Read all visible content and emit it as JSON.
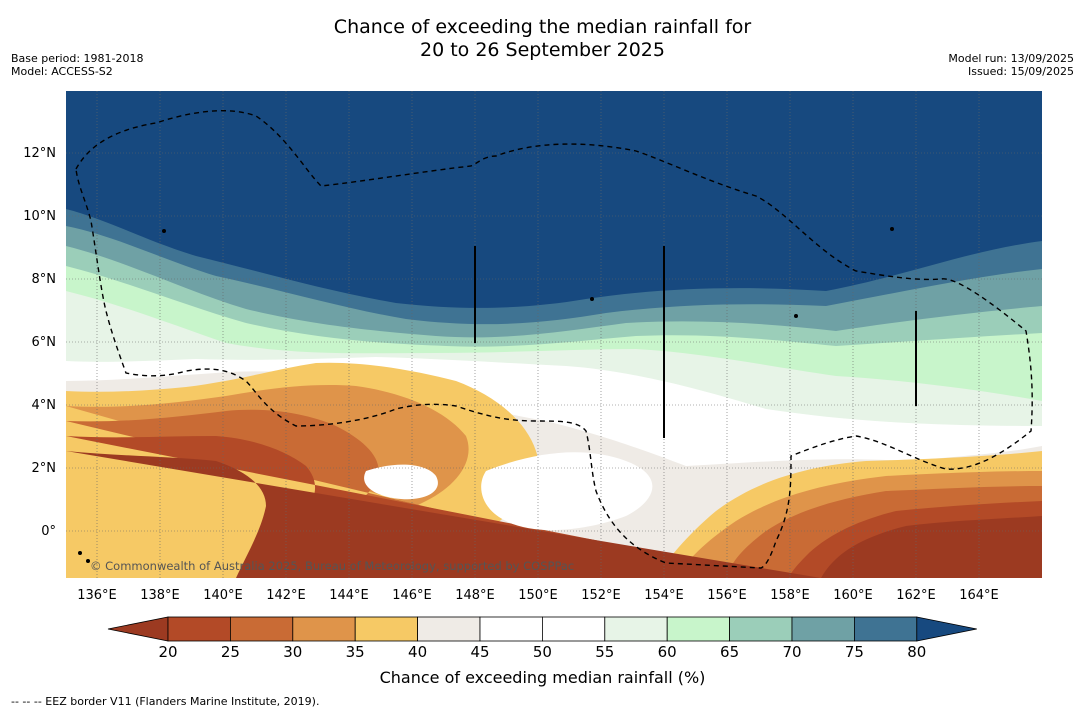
{
  "header": {
    "title_line1": "Chance of exceeding the median rainfall for",
    "title_line2": "20 to 26 September 2025",
    "base_period": "Base period: 1981-2018",
    "model": "Model: ACCESS-S2",
    "model_run": "Model run: 13/09/2025",
    "issued": "Issued: 15/09/2025"
  },
  "map": {
    "copyright": "© Commonwealth of Australia 2025, Bureau of Meteorology, supported by COSPPac",
    "lat_labels": [
      "12°N",
      "10°N",
      "8°N",
      "6°N",
      "4°N",
      "2°N",
      "0°"
    ],
    "lon_labels": [
      "136°E",
      "138°E",
      "140°E",
      "142°E",
      "144°E",
      "146°E",
      "148°E",
      "150°E",
      "152°E",
      "154°E",
      "156°E",
      "158°E",
      "160°E",
      "162°E",
      "164°E"
    ]
  },
  "colorbar": {
    "ticks": [
      "20",
      "25",
      "30",
      "35",
      "40",
      "45",
      "50",
      "55",
      "60",
      "65",
      "70",
      "75",
      "80"
    ],
    "colors": [
      "#9c3a21",
      "#b34a27",
      "#c96b35",
      "#df944a",
      "#f6c965",
      "#efebe6",
      "#ffffff",
      "#ffffff",
      "#e7f4e7",
      "#c8f5cb",
      "#9bceb9",
      "#6fa1a5",
      "#3f7393",
      "#17497f"
    ],
    "title": "Chance of exceeding median rainfall (%)"
  },
  "footnote": "--  --  -- EEZ border V11 (Flanders Marine Institute, 2019)."
}
